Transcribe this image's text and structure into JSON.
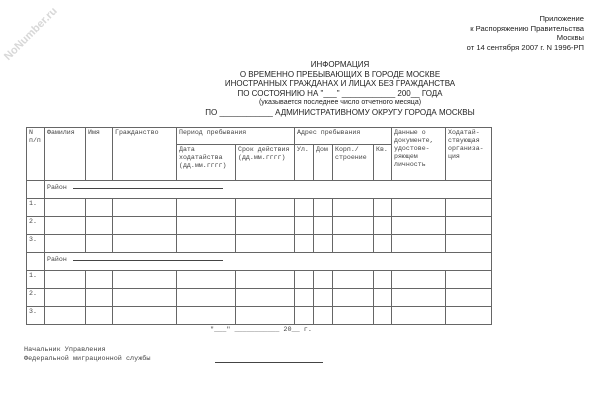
{
  "watermark": "NoNumber.ru",
  "appendix": [
    "Приложение",
    "к Распоряжению Правительства",
    "Москвы",
    "от 14 сентября 2007 г. N 1996-РП"
  ],
  "title": [
    "ИНФОРМАЦИЯ",
    "О ВРЕМЕННО ПРЕБЫВАЮЩИХ В ГОРОДЕ МОСКВЕ",
    "ИНОСТРАННЫХ ГРАЖДАНАХ И ЛИЦАХ БЕЗ ГРАЖДАНСТВА",
    "ПО СОСТОЯНИЮ НА \"___\" ____________ 200__ ГОДА",
    "(указывается последнее число отчетного месяца)",
    "ПО ____________ АДМИНИСТРАТИВНОМУ ОКРУГУ ГОРОДА МОСКВЫ"
  ],
  "table": {
    "headers": {
      "num": "N п/п",
      "surname": "Фамилия",
      "name": "Имя",
      "citizenship": "Гражданство",
      "period": "Период пребывания",
      "period_from": "Дата ходатайства (дд.мм.гггг)",
      "period_to": "Срок действия (дд.мм.гггг)",
      "address": "Адрес пребывания",
      "street": "Ул.",
      "house": "Дом",
      "building": "Корп./ строение",
      "apt": "Кв.",
      "id_doc": "Данные о документе, удостове- ряющем личность",
      "org": "Ходатай- ствующая организа- ция"
    },
    "district_label": "Район",
    "row_numbers": [
      "1.",
      "2.",
      "3."
    ]
  },
  "footer": {
    "date": "\"___\" ___________ 20__ г.",
    "sign_line1": "Начальник Управления",
    "sign_line2": "Федеральной миграционной службы"
  }
}
